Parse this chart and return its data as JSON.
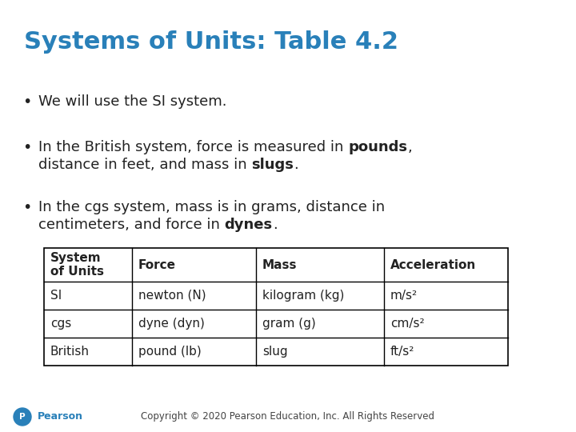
{
  "title": "Systems of Units: Table 4.2",
  "title_color": "#2980B9",
  "title_fontsize": 22,
  "background_color": "#FFFFFF",
  "text_color": "#222222",
  "bullet_fontsize": 13,
  "table_fontsize": 11,
  "footer_fontsize": 8.5,
  "pearson_color": "#2980B9",
  "footer_text": "Copyright © 2020 Pearson Education, Inc. All Rights Reserved",
  "table_headers": [
    "System\nof Units",
    "Force",
    "Mass",
    "Acceleration"
  ],
  "table_rows": [
    [
      "SI",
      "newton (N)",
      "kilogram (kg)",
      "m/s²"
    ],
    [
      "cgs",
      "dyne (dyn)",
      "gram (g)",
      "cm/s²"
    ],
    [
      "British",
      "pound (lb)",
      "slug",
      "ft/s²"
    ]
  ]
}
